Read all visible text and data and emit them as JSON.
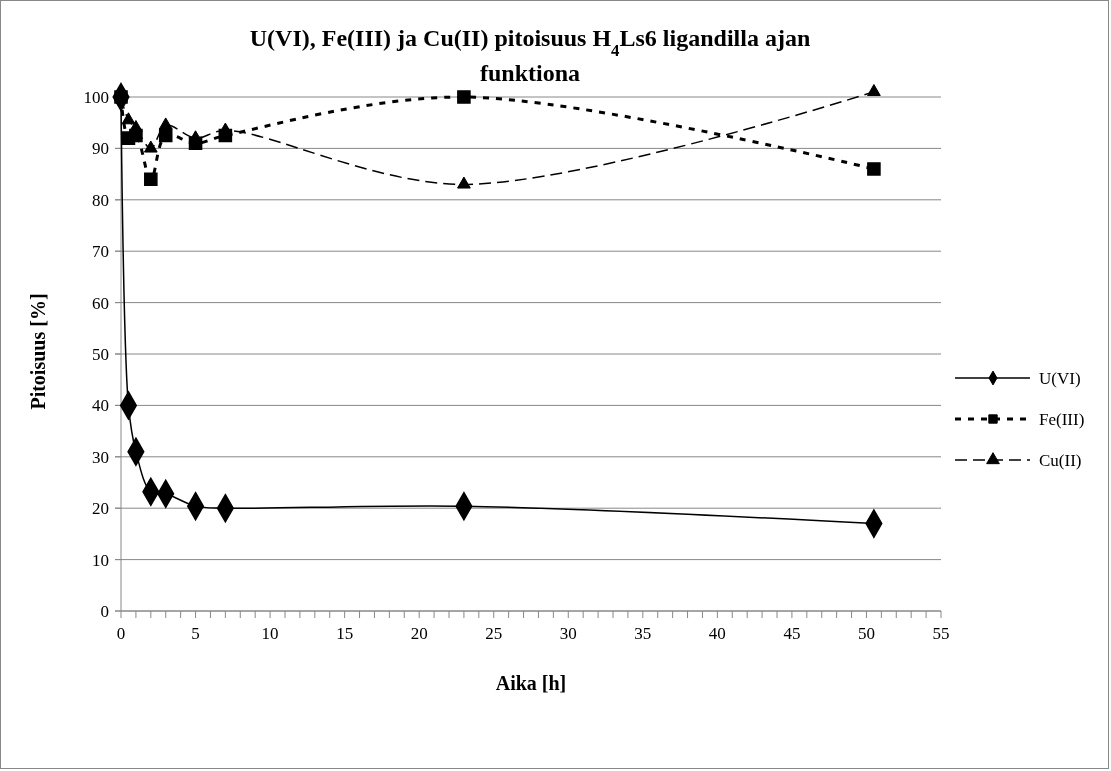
{
  "chart_data": {
    "type": "line",
    "title": "U(VI), Fe(III) ja Cu(II) pitoisuus H$_{4}$Ls6 ligandilla ajan funktiona",
    "xlabel": "Aika [h]",
    "ylabel": "Pitoisuus [%]",
    "x": [
      0,
      0.5,
      1,
      2,
      3,
      5,
      7,
      23,
      50.5
    ],
    "series": [
      {
        "name": "U(VI)",
        "color": "#000000",
        "marker": "diamond",
        "line_style": "solid",
        "values": [
          100,
          40,
          31,
          23.2,
          22.8,
          20.4,
          20,
          20.4,
          17
        ]
      },
      {
        "name": "Fe(III)",
        "color": "#000000",
        "marker": "square",
        "line_style": "dotted",
        "values": [
          100,
          92,
          92.5,
          84,
          92.5,
          91,
          92.5,
          100,
          86
        ]
      },
      {
        "name": "Cu(II)",
        "color": "#000000",
        "marker": "triangle",
        "line_style": "dashed",
        "values": [
          100,
          95.5,
          94,
          90,
          94.5,
          92,
          93.5,
          83,
          101
        ]
      }
    ],
    "xlim": [
      0,
      55
    ],
    "ylim": [
      0,
      101
    ],
    "xticks": [
      0,
      {
        "value": 1,
        "label": null
      },
      {
        "value": 2,
        "label": null
      },
      {
        "value": 3,
        "label": null
      },
      {
        "value": 4,
        "label": null
      },
      5,
      {
        "value": 6,
        "label": null
      },
      {
        "value": 7,
        "label": null
      },
      {
        "value": 8,
        "label": null
      },
      {
        "value": 9,
        "label": null
      },
      10,
      {
        "value": 11,
        "label": null
      },
      {
        "value": 12,
        "label": null
      },
      {
        "value": 13,
        "label": null
      },
      {
        "value": 14,
        "label": null
      },
      15,
      {
        "value": 16,
        "label": null
      },
      {
        "value": 17,
        "label": null
      },
      {
        "value": 18,
        "label": null
      },
      {
        "value": 19,
        "label": null
      },
      20,
      {
        "value": 21,
        "label": null
      },
      {
        "value": 22,
        "label": null
      },
      {
        "value": 23,
        "label": null
      },
      {
        "value": 24,
        "label": null
      },
      25,
      {
        "value": 26,
        "label": null
      },
      {
        "value": 27,
        "label": null
      },
      {
        "value": 28,
        "label": null
      },
      {
        "value": 29,
        "label": null
      },
      30,
      {
        "value": 31,
        "label": null
      },
      {
        "value": 32,
        "label": null
      },
      {
        "value": 33,
        "label": null
      },
      {
        "value": 34,
        "label": null
      },
      35,
      {
        "value": 36,
        "label": null
      },
      {
        "value": 37,
        "label": null
      },
      {
        "value": 38,
        "label": null
      },
      {
        "value": 39,
        "label": null
      },
      40,
      {
        "value": 41,
        "label": null
      },
      {
        "value": 42,
        "label": null
      },
      {
        "value": 43,
        "label": null
      },
      {
        "value": 44,
        "label": null
      },
      45,
      {
        "value": 46,
        "label": null
      },
      {
        "value": 47,
        "label": null
      },
      {
        "value": 48,
        "label": null
      },
      {
        "value": 49,
        "label": null
      },
      50,
      {
        "value": 51,
        "label": null
      },
      {
        "value": 52,
        "label": null
      },
      {
        "value": 53,
        "label": null
      },
      {
        "value": 54,
        "label": null
      },
      55
    ],
    "yticks": [
      0,
      10,
      20,
      30,
      40,
      50,
      60,
      70,
      80,
      90,
      100
    ],
    "grid": "y",
    "legend": "right"
  }
}
